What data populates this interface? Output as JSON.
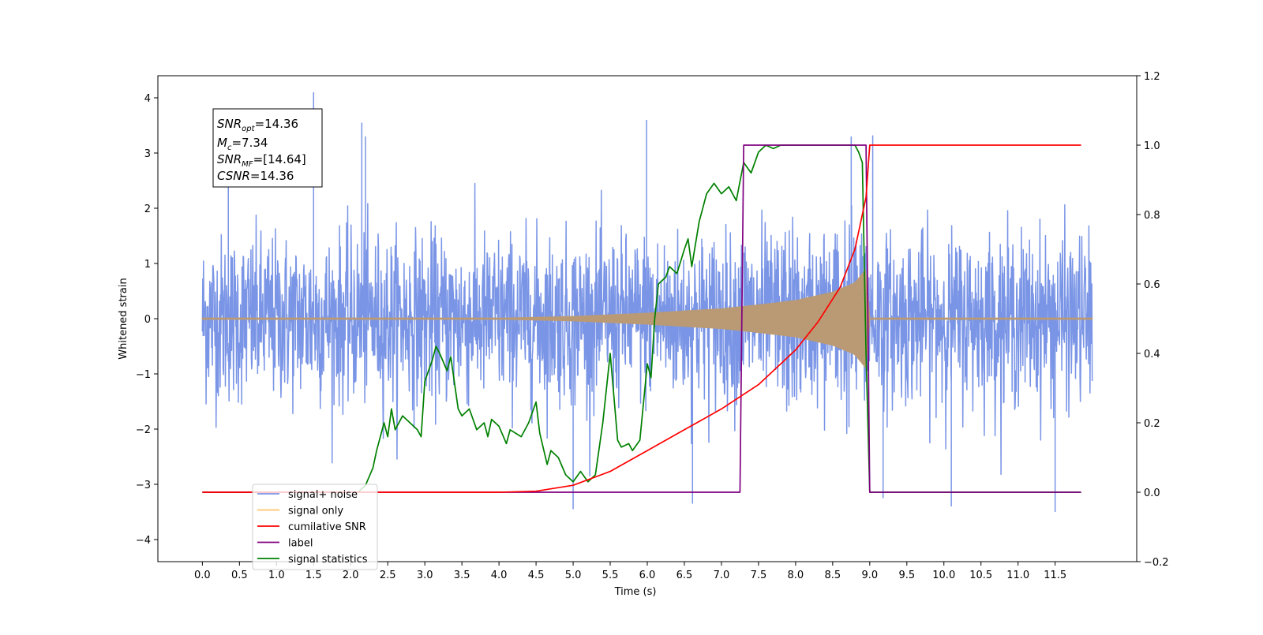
{
  "chart_data": {
    "type": "line",
    "xlabel": "Time (s)",
    "ylabel": "Whitened strain",
    "xlim": [
      -0.6,
      12.6
    ],
    "ylim": [
      -4.4,
      4.4
    ],
    "y2lim": [
      -0.2,
      1.2
    ],
    "grid": false,
    "legend_position": "lower-left",
    "x_ticks": [
      "0.0",
      "0.5",
      "1.0",
      "1.5",
      "2.0",
      "2.5",
      "3.0",
      "3.5",
      "4.0",
      "4.5",
      "5.0",
      "5.5",
      "6.0",
      "6.5",
      "7.0",
      "7.5",
      "8.0",
      "8.5",
      "9.0",
      "9.5",
      "10.0",
      "10.5",
      "11.0",
      "11.5"
    ],
    "y_ticks": [
      "−4",
      "−3",
      "−2",
      "−1",
      "0",
      "1",
      "2",
      "3",
      "4"
    ],
    "y2_ticks": [
      "−0.2",
      "0.0",
      "0.2",
      "0.4",
      "0.6",
      "0.8",
      "1.0",
      "1.2"
    ],
    "annotation": {
      "snr_opt": "=14.36",
      "mc": "=7.34",
      "snr_mf": "=[14.64]",
      "csnr": "=14.36"
    },
    "series": [
      {
        "name": "signal+ noise",
        "color": "#7a95e6",
        "axis": "left",
        "kind": "noise",
        "x_range": [
          0.0,
          12.0
        ],
        "std": 0.75,
        "peak_values": [
          {
            "x": 0.35,
            "y": 3.1
          },
          {
            "x": 1.5,
            "y": 4.1
          },
          {
            "x": 2.15,
            "y": 3.55
          },
          {
            "x": 2.2,
            "y": 3.3
          },
          {
            "x": 5.99,
            "y": 3.6
          },
          {
            "x": 8.75,
            "y": 3.3
          },
          {
            "x": 9.04,
            "y": 3.32
          },
          {
            "x": 5.0,
            "y": -3.45
          },
          {
            "x": 11.5,
            "y": -3.5
          },
          {
            "x": 6.61,
            "y": -3.35
          },
          {
            "x": 10.1,
            "y": -3.4
          },
          {
            "x": 9.18,
            "y": -3.25
          }
        ]
      },
      {
        "name": "signal only",
        "color": "#ba9a74",
        "legend_color": "#ffc46c",
        "axis": "left",
        "kind": "chirp",
        "x": [
          0.0,
          4.0,
          5.0,
          6.0,
          7.0,
          7.5,
          8.0,
          8.5,
          8.8,
          8.95,
          9.0,
          12.0
        ],
        "amplitude": [
          0.0,
          0.01,
          0.04,
          0.1,
          0.18,
          0.25,
          0.33,
          0.48,
          0.65,
          0.9,
          0.0,
          0.0
        ]
      },
      {
        "name": "cumilative SNR",
        "color": "#ff0000",
        "axis": "right",
        "x": [
          0.0,
          4.0,
          4.5,
          5.0,
          5.5,
          6.0,
          6.5,
          7.0,
          7.5,
          8.0,
          8.3,
          8.6,
          8.8,
          8.95,
          9.0,
          9.05,
          11.85
        ],
        "y": [
          0.0,
          0.0,
          0.003,
          0.02,
          0.06,
          0.12,
          0.18,
          0.24,
          0.31,
          0.41,
          0.49,
          0.59,
          0.7,
          0.85,
          1.0,
          1.0,
          1.0
        ]
      },
      {
        "name": "label",
        "color": "#800080",
        "axis": "right",
        "x": [
          0.0,
          7.25,
          7.3,
          8.95,
          9.0,
          11.85
        ],
        "y": [
          0.0,
          0.0,
          1.0,
          1.0,
          0.0,
          0.0
        ]
      },
      {
        "name": "signal statistics",
        "color": "#008000",
        "axis": "right",
        "x": [
          0.0,
          2.1,
          2.2,
          2.3,
          2.35,
          2.45,
          2.5,
          2.55,
          2.6,
          2.7,
          2.8,
          2.9,
          2.95,
          3.0,
          3.1,
          3.15,
          3.2,
          3.3,
          3.35,
          3.45,
          3.5,
          3.6,
          3.7,
          3.8,
          3.85,
          3.9,
          4.0,
          4.1,
          4.15,
          4.3,
          4.4,
          4.5,
          4.55,
          4.65,
          4.7,
          4.8,
          4.9,
          5.0,
          5.1,
          5.2,
          5.3,
          5.4,
          5.5,
          5.6,
          5.65,
          5.75,
          5.8,
          5.9,
          6.0,
          6.05,
          6.1,
          6.15,
          6.25,
          6.3,
          6.4,
          6.5,
          6.55,
          6.6,
          6.7,
          6.8,
          6.9,
          7.0,
          7.1,
          7.2,
          7.3,
          7.4,
          7.5,
          7.55,
          7.6,
          7.7,
          7.8,
          8.0,
          8.2,
          8.3,
          8.5,
          8.7,
          8.8,
          8.85,
          8.9,
          8.95,
          9.0,
          9.05,
          9.1,
          11.85
        ],
        "y": [
          0.0,
          0.0,
          0.02,
          0.07,
          0.12,
          0.2,
          0.16,
          0.24,
          0.18,
          0.22,
          0.2,
          0.18,
          0.16,
          0.32,
          0.38,
          0.42,
          0.4,
          0.35,
          0.39,
          0.24,
          0.22,
          0.24,
          0.18,
          0.2,
          0.16,
          0.21,
          0.19,
          0.14,
          0.18,
          0.16,
          0.2,
          0.26,
          0.17,
          0.08,
          0.12,
          0.1,
          0.05,
          0.03,
          0.06,
          0.03,
          0.05,
          0.2,
          0.4,
          0.15,
          0.13,
          0.14,
          0.12,
          0.15,
          0.37,
          0.33,
          0.5,
          0.6,
          0.62,
          0.65,
          0.63,
          0.7,
          0.73,
          0.65,
          0.78,
          0.86,
          0.89,
          0.86,
          0.88,
          0.84,
          0.95,
          0.92,
          0.98,
          0.99,
          1.0,
          0.99,
          1.0,
          1.0,
          1.0,
          1.0,
          1.0,
          1.0,
          1.0,
          0.98,
          0.95,
          0.4,
          0.0,
          0.0,
          0.0,
          0.0
        ]
      }
    ]
  }
}
